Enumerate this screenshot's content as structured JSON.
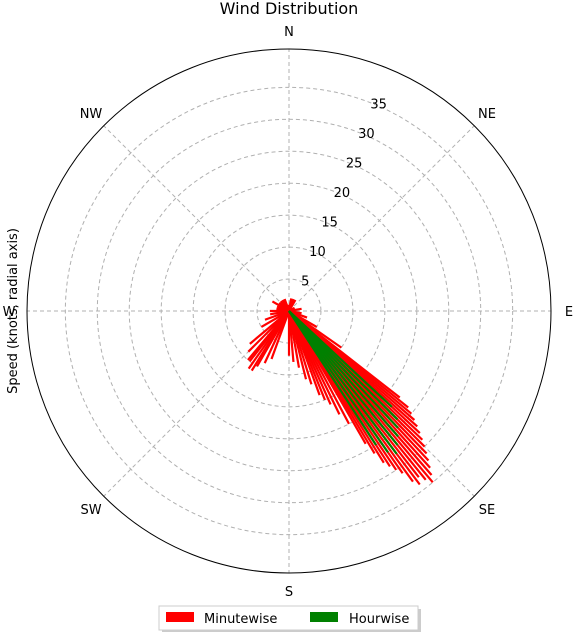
{
  "chart_data": {
    "type": "polar-bar",
    "title": "Wind Distribution",
    "ylabel": "Speed (knots, radial axis)",
    "direction_labels": [
      "N",
      "NE",
      "E",
      "SE",
      "S",
      "SW",
      "W",
      "NW"
    ],
    "direction_angles_deg": [
      0,
      45,
      90,
      135,
      180,
      225,
      270,
      315
    ],
    "radial_ticks": [
      5,
      10,
      15,
      20,
      25,
      30,
      35
    ],
    "rlim": [
      0,
      41
    ],
    "grid": true,
    "legend_position": "bottom-center",
    "series": [
      {
        "name": "Minutewise",
        "color": "#ff0000",
        "points": [
          [
            128,
            22
          ],
          [
            129,
            24
          ],
          [
            130,
            25
          ],
          [
            131,
            26
          ],
          [
            132,
            27
          ],
          [
            133,
            28
          ],
          [
            134,
            29
          ],
          [
            135,
            30
          ],
          [
            136,
            31
          ],
          [
            137,
            32
          ],
          [
            138,
            33
          ],
          [
            139,
            34
          ],
          [
            140,
            35
          ],
          [
            141,
            34
          ],
          [
            142,
            33
          ],
          [
            143,
            34
          ],
          [
            144,
            33
          ],
          [
            145,
            31
          ],
          [
            146,
            30
          ],
          [
            147,
            29
          ],
          [
            148,
            28
          ],
          [
            149,
            26
          ],
          [
            150,
            24
          ],
          [
            152,
            20
          ],
          [
            154,
            18
          ],
          [
            156,
            16
          ],
          [
            158,
            15
          ],
          [
            160,
            14
          ],
          [
            163,
            12
          ],
          [
            166,
            11
          ],
          [
            170,
            9
          ],
          [
            175,
            8
          ],
          [
            180,
            7
          ],
          [
            200,
            8
          ],
          [
            205,
            9
          ],
          [
            210,
            10
          ],
          [
            212,
            11
          ],
          [
            215,
            11
          ],
          [
            218,
            10
          ],
          [
            220,
            10
          ],
          [
            225,
            9
          ],
          [
            230,
            8
          ],
          [
            240,
            5
          ],
          [
            250,
            4
          ],
          [
            260,
            3
          ],
          [
            270,
            3
          ],
          [
            280,
            2
          ],
          [
            290,
            2
          ],
          [
            300,
            3
          ],
          [
            310,
            2
          ],
          [
            320,
            2
          ],
          [
            330,
            2
          ],
          [
            340,
            2
          ],
          [
            350,
            1
          ],
          [
            10,
            2
          ],
          [
            20,
            2
          ],
          [
            30,
            2
          ],
          [
            60,
            1
          ],
          [
            80,
            2
          ],
          [
            100,
            2
          ],
          [
            110,
            3
          ],
          [
            120,
            5
          ],
          [
            125,
            10
          ]
        ]
      },
      {
        "name": "Hourwise",
        "color": "#008000",
        "points": [
          [
            133,
            22
          ],
          [
            135,
            24
          ],
          [
            137,
            25
          ],
          [
            139,
            26
          ],
          [
            141,
            27
          ],
          [
            143,
            28
          ],
          [
            145,
            27
          ],
          [
            147,
            25
          ]
        ]
      }
    ]
  }
}
